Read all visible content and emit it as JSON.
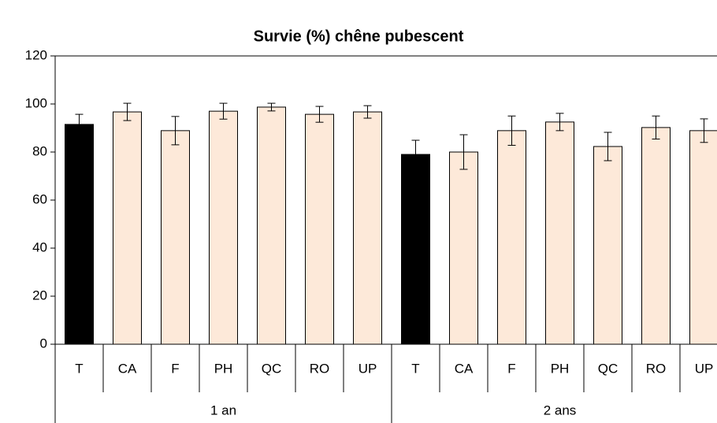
{
  "chart_data": {
    "type": "bar",
    "title": "Survie (%)  chêne pubescent",
    "groups": [
      {
        "name": "1 an",
        "categories": [
          "T",
          "CA",
          "F",
          "PH",
          "QC",
          "RO",
          "UP"
        ],
        "values": [
          91.5,
          96.7,
          88.9,
          97,
          98.7,
          95.7,
          96.7
        ],
        "errors": [
          4.2,
          3.6,
          5.9,
          3.3,
          1.6,
          3.3,
          2.6
        ],
        "colors": [
          "#000000",
          "#fde9d9",
          "#fde9d9",
          "#fde9d9",
          "#fde9d9",
          "#fde9d9",
          "#fde9d9"
        ]
      },
      {
        "name": "2 ans",
        "categories": [
          "T",
          "CA",
          "F",
          "PH",
          "QC",
          "RO",
          "UP"
        ],
        "values": [
          79,
          80,
          88.9,
          92.5,
          82.3,
          90.2,
          88.9
        ],
        "errors": [
          5.9,
          7.2,
          6.1,
          3.6,
          5.9,
          4.8,
          4.9
        ],
        "colors": [
          "#000000",
          "#fde9d9",
          "#fde9d9",
          "#fde9d9",
          "#fde9d9",
          "#fde9d9",
          "#fde9d9"
        ]
      }
    ],
    "ylim": [
      0,
      120
    ],
    "yticks": [
      0,
      20,
      40,
      60,
      80,
      100,
      120
    ],
    "grid": false
  }
}
